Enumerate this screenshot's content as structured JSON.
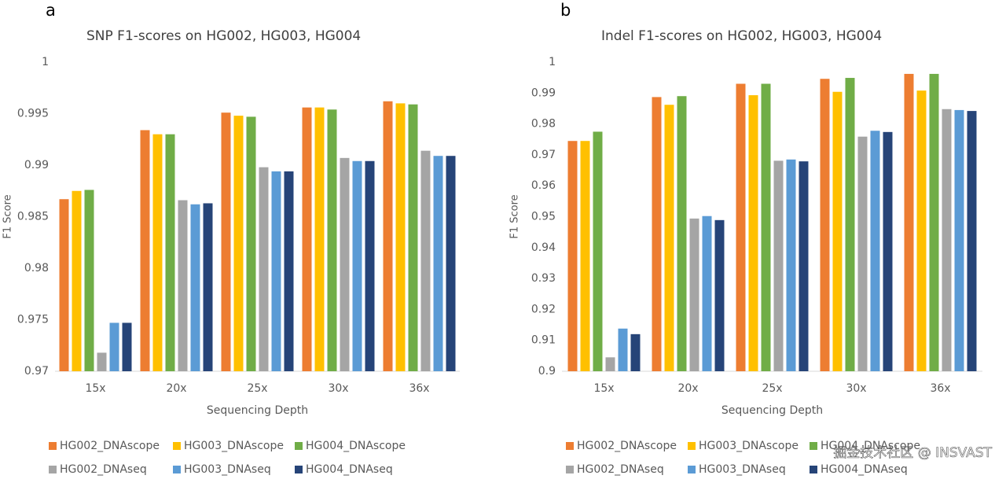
{
  "chart_data": [
    {
      "type": "bar",
      "panel_label": "a",
      "title": "SNP F1-scores on HG002, HG003, HG004",
      "x_label": "Sequencing Depth",
      "y_label": "F1 Score",
      "categories": [
        "15x",
        "20x",
        "25x",
        "30x",
        "36x"
      ],
      "series": [
        {
          "name": "HG002_DNAscope",
          "color": "#ed7d31",
          "values": [
            0.9867,
            0.9934,
            0.9951,
            0.9956,
            0.9962
          ]
        },
        {
          "name": "HG003_DNAscope",
          "color": "#ffc000",
          "values": [
            0.9875,
            0.993,
            0.9948,
            0.9956,
            0.996
          ]
        },
        {
          "name": "HG004_DNAscope",
          "color": "#70ad47",
          "values": [
            0.9876,
            0.993,
            0.9947,
            0.9954,
            0.9959
          ]
        },
        {
          "name": "HG002_DNAseq",
          "color": "#a5a5a5",
          "values": [
            0.9718,
            0.9866,
            0.9898,
            0.9907,
            0.9914
          ]
        },
        {
          "name": "HG003_DNAseq",
          "color": "#5b9bd5",
          "values": [
            0.9747,
            0.9862,
            0.9894,
            0.9904,
            0.9909
          ]
        },
        {
          "name": "HG004_DNAseq",
          "color": "#264478",
          "values": [
            0.9747,
            0.9863,
            0.9894,
            0.9904,
            0.9909
          ]
        }
      ],
      "ylim": [
        0.97,
        1
      ],
      "yticks": [
        0.97,
        0.975,
        0.98,
        0.985,
        0.99,
        0.995,
        1
      ],
      "grid": false
    },
    {
      "type": "bar",
      "panel_label": "b",
      "title": "Indel F1-scores on HG002, HG003, HG004",
      "x_label": "Sequencing Depth",
      "y_label": "F1 Score",
      "categories": [
        "15x",
        "20x",
        "25x",
        "30x",
        "36x"
      ],
      "series": [
        {
          "name": "HG002_DNAscope",
          "color": "#ed7d31",
          "values": [
            0.9745,
            0.9887,
            0.993,
            0.9946,
            0.9962
          ]
        },
        {
          "name": "HG003_DNAscope",
          "color": "#ffc000",
          "values": [
            0.9745,
            0.9862,
            0.9893,
            0.9904,
            0.9908
          ]
        },
        {
          "name": "HG004_DNAscope",
          "color": "#70ad47",
          "values": [
            0.9775,
            0.989,
            0.993,
            0.9949,
            0.9962
          ]
        },
        {
          "name": "HG002_DNAseq",
          "color": "#a5a5a5",
          "values": [
            0.9045,
            0.9494,
            0.9681,
            0.9759,
            0.9848
          ]
        },
        {
          "name": "HG003_DNAseq",
          "color": "#5b9bd5",
          "values": [
            0.9138,
            0.9502,
            0.9685,
            0.9778,
            0.9845
          ]
        },
        {
          "name": "HG004_DNAseq",
          "color": "#264478",
          "values": [
            0.912,
            0.9489,
            0.9679,
            0.9774,
            0.9842
          ]
        }
      ],
      "ylim": [
        0.9,
        1
      ],
      "yticks": [
        0.9,
        0.91,
        0.92,
        0.93,
        0.94,
        0.95,
        0.96,
        0.97,
        0.98,
        0.99,
        1
      ],
      "grid": false
    }
  ],
  "watermark": "掘金技术社区 @ INSVAST"
}
